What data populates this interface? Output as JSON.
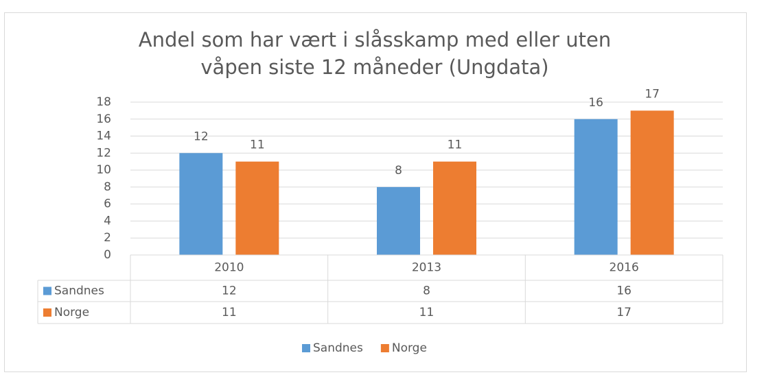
{
  "chart_data": {
    "type": "bar",
    "title": [
      "Andel som har vært i slåsskamp med eller uten",
      "våpen siste 12 måneder (Ungdata)"
    ],
    "categories": [
      "2010",
      "2013",
      "2016"
    ],
    "series": [
      {
        "name": "Sandnes",
        "color": "#5b9bd5",
        "values": [
          12,
          8,
          16
        ]
      },
      {
        "name": "Norge",
        "color": "#ed7d31",
        "values": [
          11,
          11,
          17
        ]
      }
    ],
    "ylim": [
      0,
      18
    ],
    "yticks": [
      0,
      2,
      4,
      6,
      8,
      10,
      12,
      14,
      16,
      18
    ],
    "grid": true,
    "legend": "bottom"
  }
}
